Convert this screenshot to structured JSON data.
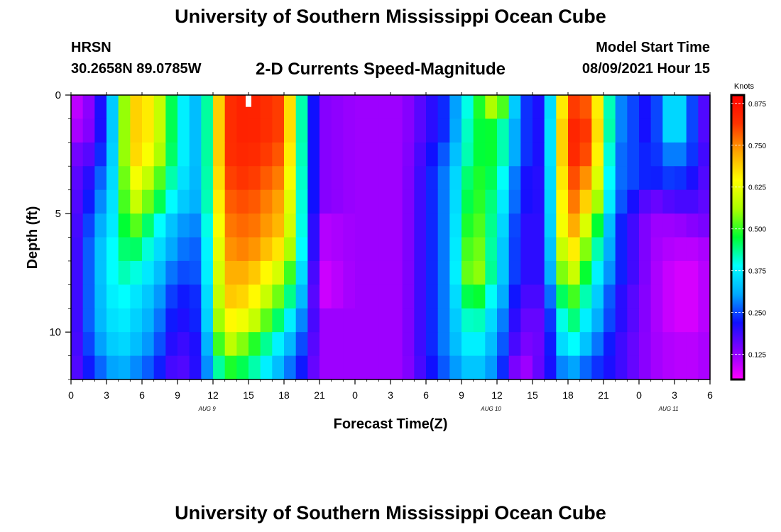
{
  "header": {
    "main_title": "University of Southern Mississippi Ocean Cube",
    "station": "HRSN",
    "coords": "30.2658N  89.0785W",
    "subtitle": "2-D Currents Speed-Magnitude",
    "model_label": "Model Start Time",
    "model_time": "08/09/2021 Hour 15"
  },
  "footer": {
    "title": "University of Southern Mississippi Ocean Cube"
  },
  "chart_data": {
    "type": "heatmap",
    "title": "2-D Currents Speed-Magnitude",
    "xlabel": "Forecast Time(Z)",
    "ylabel": "Depth (ft)",
    "x_tick_labels": [
      "0",
      "3",
      "6",
      "9",
      "12",
      "15",
      "18",
      "21",
      "0",
      "3",
      "6",
      "9",
      "12",
      "15",
      "18",
      "21",
      "0",
      "3",
      "6"
    ],
    "date_labels": [
      {
        "label": "AUG 9",
        "hour": 11.5
      },
      {
        "label": "AUG 10",
        "hour": 35.5
      },
      {
        "label": "AUG 11",
        "hour": 50.5
      }
    ],
    "x_range_hours": [
      0,
      54
    ],
    "y_ticks": [
      0,
      5,
      10
    ],
    "y_tick_labels": [
      "0",
      "5",
      "10"
    ],
    "y_range_ft": [
      0,
      12
    ],
    "colorbar": {
      "unit": "Knots",
      "ticks": [
        0.125,
        0.25,
        0.375,
        0.5,
        0.625,
        0.75,
        0.875
      ],
      "tick_labels": [
        "0.125",
        "0.250",
        "0.375",
        "0.500",
        "0.625",
        "0.750",
        "0.875"
      ],
      "range": [
        0.05,
        0.9
      ]
    },
    "depths_ft": [
      0.5,
      1.5,
      2.5,
      3.5,
      4.5,
      5.5,
      6.5,
      7.5,
      8.5,
      9.5,
      10.5,
      11.5
    ],
    "time_keyframes_hours": [
      0,
      2,
      4,
      5,
      7,
      9,
      11,
      13,
      15,
      18,
      20,
      21,
      24,
      28,
      32,
      34,
      36,
      38,
      40,
      42,
      44,
      46,
      49,
      51,
      53,
      54
    ],
    "speed_knots_by_depth": [
      [
        0.08,
        0.15,
        0.4,
        0.7,
        0.65,
        0.4,
        0.3,
        0.82,
        0.85,
        0.8,
        0.3,
        0.14,
        0.12,
        0.12,
        0.25,
        0.45,
        0.6,
        0.25,
        0.2,
        0.82,
        0.78,
        0.3,
        0.2,
        0.4,
        0.2,
        0.15
      ],
      [
        0.1,
        0.15,
        0.4,
        0.7,
        0.65,
        0.4,
        0.3,
        0.82,
        0.85,
        0.8,
        0.3,
        0.14,
        0.12,
        0.12,
        0.25,
        0.47,
        0.48,
        0.25,
        0.2,
        0.85,
        0.8,
        0.3,
        0.2,
        0.4,
        0.2,
        0.15
      ],
      [
        0.14,
        0.18,
        0.4,
        0.7,
        0.62,
        0.4,
        0.3,
        0.82,
        0.84,
        0.78,
        0.3,
        0.14,
        0.12,
        0.12,
        0.28,
        0.47,
        0.48,
        0.25,
        0.2,
        0.85,
        0.78,
        0.28,
        0.22,
        0.3,
        0.22,
        0.15
      ],
      [
        0.15,
        0.22,
        0.4,
        0.66,
        0.56,
        0.38,
        0.3,
        0.8,
        0.82,
        0.75,
        0.3,
        0.14,
        0.12,
        0.12,
        0.3,
        0.5,
        0.45,
        0.22,
        0.2,
        0.82,
        0.72,
        0.28,
        0.22,
        0.25,
        0.2,
        0.15
      ],
      [
        0.15,
        0.25,
        0.4,
        0.62,
        0.5,
        0.35,
        0.3,
        0.78,
        0.8,
        0.72,
        0.3,
        0.14,
        0.12,
        0.12,
        0.3,
        0.52,
        0.42,
        0.22,
        0.2,
        0.8,
        0.65,
        0.28,
        0.15,
        0.18,
        0.18,
        0.15
      ],
      [
        0.15,
        0.28,
        0.4,
        0.55,
        0.42,
        0.3,
        0.28,
        0.76,
        0.78,
        0.7,
        0.3,
        0.1,
        0.12,
        0.12,
        0.3,
        0.55,
        0.4,
        0.2,
        0.2,
        0.78,
        0.55,
        0.25,
        0.12,
        0.12,
        0.14,
        0.15
      ],
      [
        0.15,
        0.3,
        0.42,
        0.48,
        0.38,
        0.28,
        0.26,
        0.74,
        0.76,
        0.65,
        0.3,
        0.1,
        0.12,
        0.12,
        0.3,
        0.58,
        0.38,
        0.2,
        0.2,
        0.72,
        0.48,
        0.25,
        0.12,
        0.1,
        0.1,
        0.12
      ],
      [
        0.15,
        0.3,
        0.42,
        0.42,
        0.35,
        0.25,
        0.26,
        0.72,
        0.72,
        0.58,
        0.28,
        0.08,
        0.12,
        0.12,
        0.3,
        0.6,
        0.38,
        0.2,
        0.2,
        0.65,
        0.42,
        0.25,
        0.12,
        0.08,
        0.08,
        0.12
      ],
      [
        0.15,
        0.3,
        0.4,
        0.38,
        0.32,
        0.22,
        0.24,
        0.7,
        0.68,
        0.5,
        0.26,
        0.08,
        0.12,
        0.12,
        0.3,
        0.52,
        0.35,
        0.18,
        0.18,
        0.55,
        0.38,
        0.22,
        0.12,
        0.08,
        0.08,
        0.12
      ],
      [
        0.15,
        0.3,
        0.38,
        0.36,
        0.3,
        0.2,
        0.24,
        0.66,
        0.62,
        0.42,
        0.24,
        0.12,
        0.12,
        0.12,
        0.3,
        0.45,
        0.32,
        0.16,
        0.16,
        0.48,
        0.34,
        0.22,
        0.12,
        0.08,
        0.08,
        0.12
      ],
      [
        0.15,
        0.28,
        0.36,
        0.34,
        0.28,
        0.18,
        0.22,
        0.6,
        0.52,
        0.35,
        0.22,
        0.12,
        0.12,
        0.12,
        0.3,
        0.4,
        0.3,
        0.14,
        0.16,
        0.42,
        0.3,
        0.2,
        0.12,
        0.1,
        0.1,
        0.12
      ],
      [
        0.15,
        0.25,
        0.32,
        0.3,
        0.25,
        0.16,
        0.22,
        0.5,
        0.45,
        0.3,
        0.2,
        0.12,
        0.12,
        0.12,
        0.28,
        0.35,
        0.28,
        0.1,
        0.18,
        0.32,
        0.25,
        0.2,
        0.12,
        0.1,
        0.1,
        0.12
      ]
    ],
    "marker": {
      "hour": 15,
      "depth_ft": 0.5,
      "color": "#ffffff"
    },
    "colors": [
      "#ff00ff",
      "#8800ff",
      "#1010ff",
      "#00aaff",
      "#00ffff",
      "#00ff33",
      "#aaff00",
      "#ffff00",
      "#ffa500",
      "#ff3300",
      "#ff0000"
    ]
  }
}
